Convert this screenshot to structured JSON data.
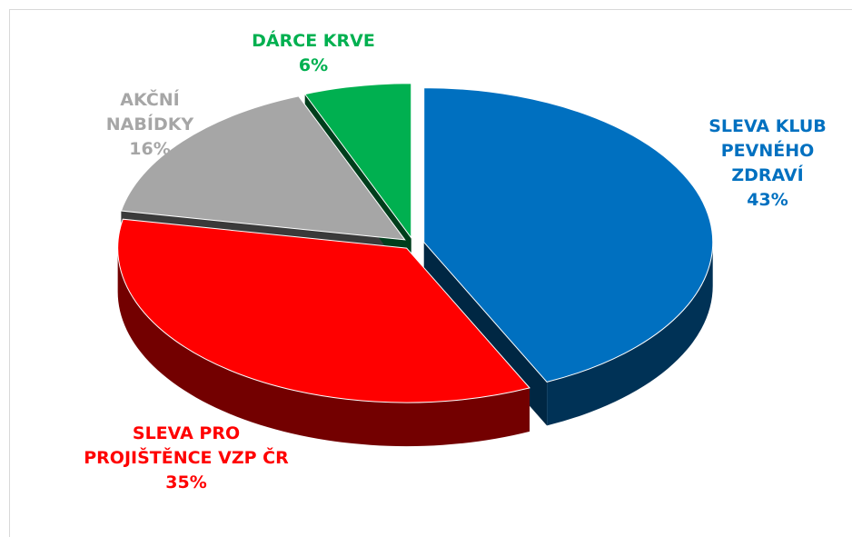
{
  "chart_data": {
    "type": "pie",
    "categories": [
      "SLEVA KLUB PEVNÉHO ZDRAVÍ",
      "SLEVA PRO PROJIŠTĚNCE VZP ČR",
      "AKČNÍ NABÍDKY",
      "DÁRCE KRVE"
    ],
    "values": [
      43,
      35,
      16,
      6
    ],
    "value_labels": [
      "43%",
      "35%",
      "16%",
      "6%"
    ],
    "colors": [
      "#0070c0",
      "#ff0000",
      "#a6a6a6",
      "#00b050"
    ]
  }
}
